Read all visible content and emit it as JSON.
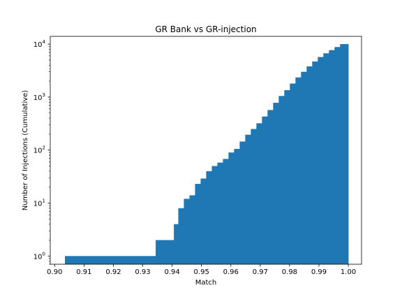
{
  "chart_data": {
    "type": "bar",
    "title": "GR Bank vs GR-injection",
    "xlabel": "Match",
    "ylabel": "Number of Injections (Cumulative)",
    "xlim": [
      0.8985,
      1.0045
    ],
    "ylim": [
      0.7,
      14000
    ],
    "yscale": "log",
    "grid": false,
    "xticks": [
      0.9,
      0.91,
      0.92,
      0.93,
      0.94,
      0.95,
      0.96,
      0.97,
      0.98,
      0.99,
      1.0
    ],
    "xtick_labels": [
      "0.90",
      "0.91",
      "0.92",
      "0.93",
      "0.94",
      "0.95",
      "0.96",
      "0.97",
      "0.98",
      "0.99",
      "1.00"
    ],
    "yticks": [
      1,
      10,
      100,
      1000,
      10000
    ],
    "ytick_labels": [
      {
        "base": "10",
        "exp": "0"
      },
      {
        "base": "10",
        "exp": "1"
      },
      {
        "base": "10",
        "exp": "2"
      },
      {
        "base": "10",
        "exp": "3"
      },
      {
        "base": "10",
        "exp": "4"
      }
    ],
    "color": "#1f77b4",
    "bins": [
      {
        "x0": 0.9035,
        "x1": 0.9344,
        "value": 1
      },
      {
        "x0": 0.9344,
        "x1": 0.9406,
        "value": 2
      },
      {
        "x0": 0.9406,
        "x1": 0.9421,
        "value": 4
      },
      {
        "x0": 0.9421,
        "x1": 0.944,
        "value": 8
      },
      {
        "x0": 0.944,
        "x1": 0.9459,
        "value": 12
      },
      {
        "x0": 0.9459,
        "x1": 0.9478,
        "value": 14
      },
      {
        "x0": 0.9478,
        "x1": 0.9497,
        "value": 23
      },
      {
        "x0": 0.9497,
        "x1": 0.9516,
        "value": 29
      },
      {
        "x0": 0.9516,
        "x1": 0.9535,
        "value": 40
      },
      {
        "x0": 0.9535,
        "x1": 0.9554,
        "value": 50
      },
      {
        "x0": 0.9554,
        "x1": 0.9573,
        "value": 58
      },
      {
        "x0": 0.9573,
        "x1": 0.9592,
        "value": 68
      },
      {
        "x0": 0.9592,
        "x1": 0.9611,
        "value": 90
      },
      {
        "x0": 0.9611,
        "x1": 0.963,
        "value": 105
      },
      {
        "x0": 0.963,
        "x1": 0.9649,
        "value": 145
      },
      {
        "x0": 0.9649,
        "x1": 0.9668,
        "value": 195
      },
      {
        "x0": 0.9668,
        "x1": 0.9687,
        "value": 250
      },
      {
        "x0": 0.9687,
        "x1": 0.9706,
        "value": 320
      },
      {
        "x0": 0.9706,
        "x1": 0.9725,
        "value": 430
      },
      {
        "x0": 0.9725,
        "x1": 0.9744,
        "value": 570
      },
      {
        "x0": 0.9744,
        "x1": 0.9763,
        "value": 780
      },
      {
        "x0": 0.9763,
        "x1": 0.9782,
        "value": 1050
      },
      {
        "x0": 0.9782,
        "x1": 0.9801,
        "value": 1350
      },
      {
        "x0": 0.9801,
        "x1": 0.982,
        "value": 1800
      },
      {
        "x0": 0.982,
        "x1": 0.9839,
        "value": 2350
      },
      {
        "x0": 0.9839,
        "x1": 0.9858,
        "value": 3000
      },
      {
        "x0": 0.9858,
        "x1": 0.9877,
        "value": 3800
      },
      {
        "x0": 0.9877,
        "x1": 0.9896,
        "value": 4700
      },
      {
        "x0": 0.9896,
        "x1": 0.9915,
        "value": 5700
      },
      {
        "x0": 0.9915,
        "x1": 0.9934,
        "value": 6700
      },
      {
        "x0": 0.9934,
        "x1": 0.9953,
        "value": 7700
      },
      {
        "x0": 0.9953,
        "x1": 0.9972,
        "value": 8800
      },
      {
        "x0": 0.9972,
        "x1": 1.0,
        "value": 10000
      }
    ]
  }
}
